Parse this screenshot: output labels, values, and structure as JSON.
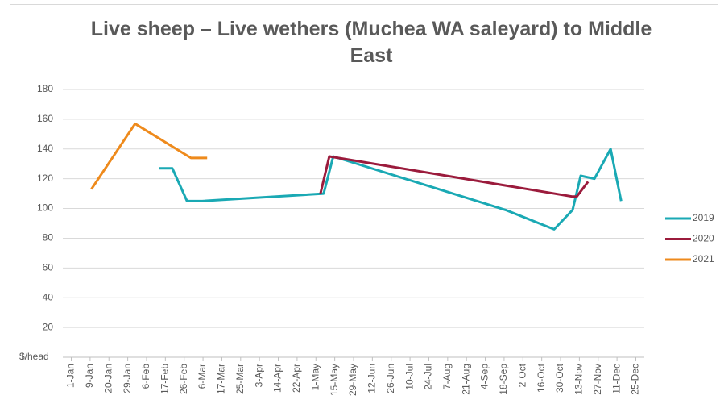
{
  "chart_data": {
    "type": "line",
    "title": "Live sheep – Live wethers (Muchea WA saleyard) to Middle East",
    "y_label": "$/head",
    "xlim": [
      -0.45,
      30.45
    ],
    "xticks": [
      {
        "value": 0,
        "label": "1-Jan"
      },
      {
        "value": 1,
        "label": "9-Jan"
      },
      {
        "value": 2,
        "label": "20-Jan"
      },
      {
        "value": 3,
        "label": "29-Jan"
      },
      {
        "value": 4,
        "label": "6-Feb"
      },
      {
        "value": 5,
        "label": "17-Feb"
      },
      {
        "value": 6,
        "label": "26-Feb"
      },
      {
        "value": 7,
        "label": "6-Mar"
      },
      {
        "value": 8,
        "label": "17-Mar"
      },
      {
        "value": 9,
        "label": "25-Mar"
      },
      {
        "value": 10,
        "label": "3-Apr"
      },
      {
        "value": 11,
        "label": "14-Apr"
      },
      {
        "value": 12,
        "label": "22-Apr"
      },
      {
        "value": 13,
        "label": "1-May"
      },
      {
        "value": 14,
        "label": "15-May"
      },
      {
        "value": 15,
        "label": "29-May"
      },
      {
        "value": 16,
        "label": "12-Jun"
      },
      {
        "value": 17,
        "label": "26-Jun"
      },
      {
        "value": 18,
        "label": "10-Jul"
      },
      {
        "value": 19,
        "label": "24-Jul"
      },
      {
        "value": 20,
        "label": "7-Aug"
      },
      {
        "value": 21,
        "label": "21-Aug"
      },
      {
        "value": 22,
        "label": "4-Sep"
      },
      {
        "value": 23,
        "label": "18-Sep"
      },
      {
        "value": 24,
        "label": "2-Oct"
      },
      {
        "value": 25,
        "label": "16-Oct"
      },
      {
        "value": 26,
        "label": "30-Oct"
      },
      {
        "value": 27,
        "label": "13-Nov"
      },
      {
        "value": 28,
        "label": "27-Nov"
      },
      {
        "value": 29,
        "label": "11-Dec"
      },
      {
        "value": 30,
        "label": "25-Dec"
      }
    ],
    "ylim": [
      0,
      180
    ],
    "yticks": [
      20,
      40,
      60,
      80,
      100,
      120,
      140,
      160,
      180
    ],
    "grid": true,
    "legend": "right",
    "series": [
      {
        "name": "2019",
        "color": "#1aa9b4",
        "x": [
          4.68,
          5.37,
          6.15,
          6.96,
          13.41,
          13.92,
          23.08,
          25.66,
          26.64,
          27.07,
          27.8,
          28.66,
          29.22
        ],
        "values": [
          127,
          127,
          105,
          105,
          110,
          135,
          99,
          86,
          99,
          122,
          120,
          140,
          105
        ]
      },
      {
        "name": "2020",
        "color": "#9b1b3c",
        "x": [
          13.24,
          13.71,
          26.64,
          26.86,
          27.46
        ],
        "values": [
          110,
          135,
          108,
          108,
          118
        ]
      },
      {
        "name": "2021",
        "color": "#ee8a1c",
        "x": [
          1.07,
          3.39,
          6.36,
          7.22
        ],
        "values": [
          113,
          157,
          134,
          134
        ]
      }
    ]
  }
}
